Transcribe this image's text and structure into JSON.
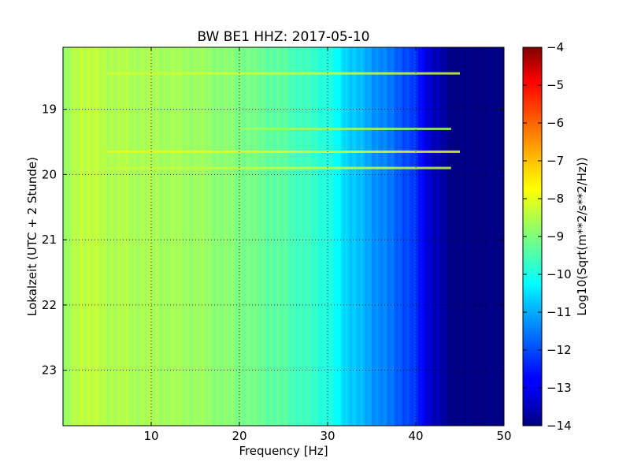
{
  "chart_data": {
    "type": "heatmap",
    "title": "BW BE1 HHZ: 2017-05-10",
    "xlabel": "Frequency [Hz]",
    "ylabel": "Lokalzeit (UTC + 2 Stunde)",
    "xlim": [
      0,
      50
    ],
    "ylim": [
      23.85,
      18.05
    ],
    "x_ticks": [
      10,
      20,
      30,
      40,
      50
    ],
    "y_ticks": [
      19,
      20,
      21,
      22,
      23
    ],
    "grid": true,
    "colormap": "jet",
    "colorbar": {
      "label": "Log10(Sqrt(m**2/s**2/Hz))",
      "range": [
        -14,
        -4
      ],
      "ticks": [
        -4,
        -5,
        -6,
        -7,
        -8,
        -9,
        -10,
        -11,
        -12,
        -13,
        -14
      ]
    },
    "spectral_profile": {
      "frequency_hz": [
        0,
        2,
        5,
        10,
        15,
        20,
        25,
        30,
        32,
        35,
        38,
        40,
        42,
        44,
        46,
        50
      ],
      "log10_amplitude": [
        -8.9,
        -8.3,
        -8.5,
        -8.6,
        -8.7,
        -9.0,
        -9.4,
        -9.9,
        -10.6,
        -11.2,
        -11.8,
        -12.3,
        -13.4,
        -13.9,
        -14.0,
        -14.0
      ]
    },
    "bright_bands": [
      {
        "time": 18.45,
        "freq_range": [
          5,
          45
        ],
        "log10_amplitude": -8.2
      },
      {
        "time": 19.3,
        "freq_range": [
          20,
          44
        ],
        "log10_amplitude": -8.7
      },
      {
        "time": 19.65,
        "freq_range": [
          5,
          45
        ],
        "log10_amplitude": -8.0
      },
      {
        "time": 19.9,
        "freq_range": [
          5,
          44
        ],
        "log10_amplitude": -8.3
      }
    ]
  }
}
